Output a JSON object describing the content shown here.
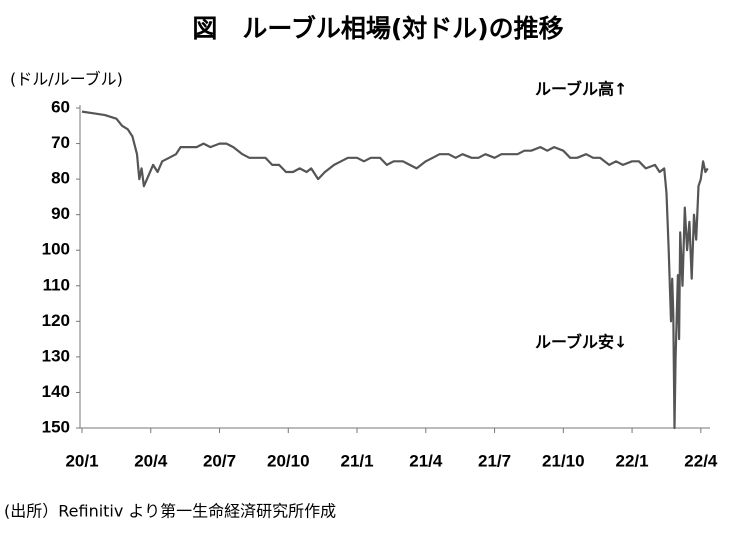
{
  "chart_data": {
    "type": "line",
    "title": "図　ルーブル相場(対ドル)の推移",
    "y_label": "(ドル/ルーブル)",
    "annotations": [
      "ルーブル高↑",
      "ルーブル安↓"
    ],
    "source": "(出所）Refinitiv より第一生命経済研究所作成",
    "color": "#555555",
    "title_color": "#1f4fc8",
    "y_inverted": true,
    "ylim": [
      60,
      150
    ],
    "yticks": [
      60,
      70,
      80,
      90,
      100,
      110,
      120,
      130,
      140,
      150
    ],
    "xlim": [
      0,
      27.4
    ],
    "xticks": [
      {
        "value": 0,
        "label": "20/1"
      },
      {
        "value": 3,
        "label": "20/4"
      },
      {
        "value": 6,
        "label": "20/7"
      },
      {
        "value": 9,
        "label": "20/10"
      },
      {
        "value": 12,
        "label": "21/1"
      },
      {
        "value": 15,
        "label": "21/4"
      },
      {
        "value": 18,
        "label": "21/7"
      },
      {
        "value": 21,
        "label": "21/10"
      },
      {
        "value": 24,
        "label": "22/1"
      },
      {
        "value": 27,
        "label": "22/4"
      }
    ],
    "x": [
      0,
      0.5,
      1,
      1.5,
      1.75,
      2,
      2.2,
      2.4,
      2.5,
      2.6,
      2.7,
      2.9,
      3.1,
      3.3,
      3.5,
      3.8,
      4.1,
      4.3,
      4.6,
      5,
      5.3,
      5.6,
      6,
      6.3,
      6.6,
      7,
      7.3,
      7.6,
      8,
      8.3,
      8.6,
      8.9,
      9.2,
      9.5,
      9.8,
      10,
      10.3,
      10.6,
      11,
      11.3,
      11.6,
      12,
      12.3,
      12.6,
      13,
      13.3,
      13.6,
      14,
      14.3,
      14.6,
      15,
      15.3,
      15.6,
      16,
      16.3,
      16.6,
      17,
      17.3,
      17.6,
      18,
      18.3,
      18.6,
      19,
      19.3,
      19.6,
      20,
      20.3,
      20.6,
      21,
      21.3,
      21.6,
      22,
      22.3,
      22.6,
      23,
      23.3,
      23.6,
      24,
      24.3,
      24.6,
      25,
      25.2,
      25.4,
      25.5,
      25.6,
      25.7,
      25.75,
      25.8,
      25.85,
      25.9,
      26,
      26.05,
      26.1,
      26.2,
      26.3,
      26.4,
      26.5,
      26.6,
      26.7,
      26.8,
      26.9,
      27,
      27.1,
      27.2,
      27.3
    ],
    "values": [
      61,
      61.5,
      62,
      63,
      65,
      66,
      68,
      73,
      80,
      77,
      82,
      79,
      76,
      78,
      75,
      74,
      73,
      71,
      71,
      71,
      70,
      71,
      70,
      70,
      71,
      73,
      74,
      74,
      74,
      76,
      76,
      78,
      78,
      77,
      78,
      77,
      80,
      78,
      76,
      75,
      74,
      74,
      75,
      74,
      74,
      76,
      75,
      75,
      76,
      77,
      75,
      74,
      73,
      73,
      74,
      73,
      74,
      74,
      73,
      74,
      73,
      73,
      73,
      72,
      72,
      71,
      72,
      71,
      72,
      74,
      74,
      73,
      74,
      74,
      76,
      75,
      76,
      75,
      75,
      77,
      76,
      78,
      77,
      84,
      100,
      120,
      108,
      118,
      150,
      130,
      107,
      125,
      95,
      110,
      88,
      100,
      92,
      108,
      90,
      97,
      82,
      80,
      75,
      78,
      77
    ]
  }
}
